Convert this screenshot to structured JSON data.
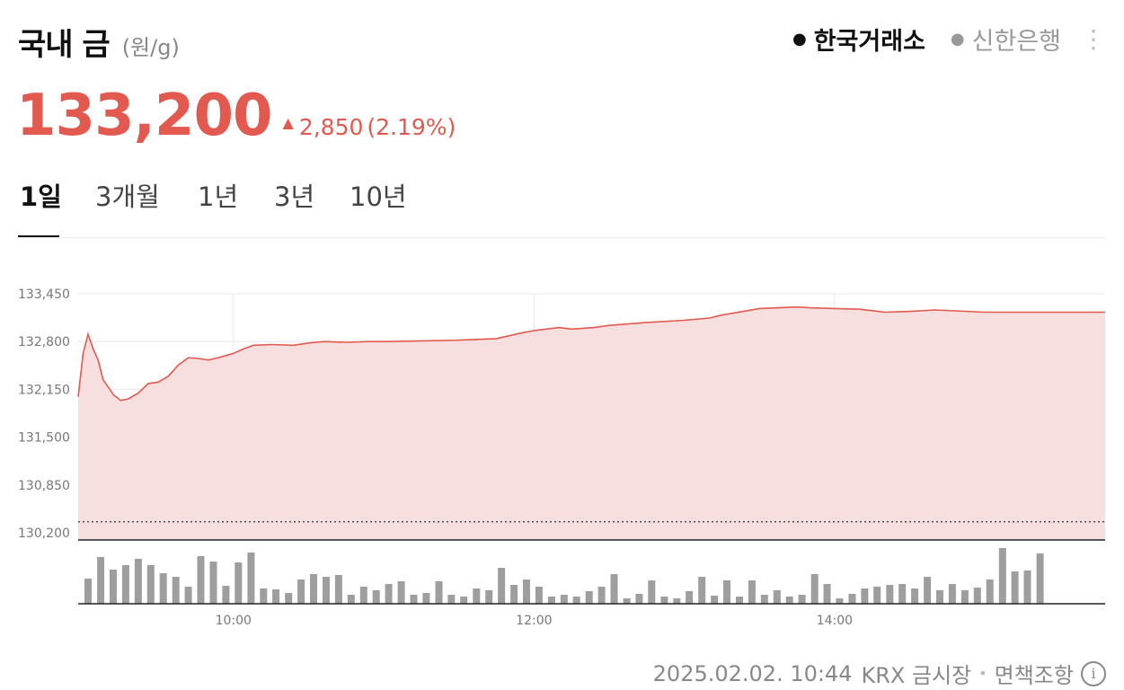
{
  "header": {
    "title": "국내 금",
    "unit": "(원/g)"
  },
  "sources": [
    {
      "label": "한국거래소",
      "active": true
    },
    {
      "label": "신한은행",
      "active": false
    }
  ],
  "more_icon": "more-vertical-icon",
  "price": {
    "value": "133,200",
    "arrow": "▲",
    "change": "2,850",
    "change_pct": "(2.19%)"
  },
  "tabs": [
    {
      "label": "1일",
      "active": true
    },
    {
      "label": "3개월",
      "active": false
    },
    {
      "label": "1년",
      "active": false
    },
    {
      "label": "3년",
      "active": false
    },
    {
      "label": "10년",
      "active": false
    }
  ],
  "colors": {
    "accent": "#e25a4f",
    "area_fill": "#f7dfdf",
    "volume": "#9e9e9e"
  },
  "chart_data": {
    "type": "area",
    "x_ticks": [
      "10:00",
      "12:00",
      "14:00"
    ],
    "y_ticks": [
      "133,450",
      "132,800",
      "132,150",
      "131,500",
      "130,850",
      "130,200"
    ],
    "ylim": [
      130200,
      133450
    ],
    "xlim": [
      8.967,
      15.8
    ],
    "reference_line": 130350,
    "grid": true,
    "x": [
      8.967,
      9.0,
      9.033,
      9.067,
      9.1,
      9.133,
      9.167,
      9.2,
      9.25,
      9.3,
      9.367,
      9.433,
      9.5,
      9.567,
      9.633,
      9.7,
      9.767,
      9.833,
      9.9,
      10.0,
      10.067,
      10.133,
      10.25,
      10.4,
      10.5,
      10.6,
      10.75,
      10.9,
      11.0,
      11.25,
      11.5,
      11.75,
      11.9,
      12.0,
      12.167,
      12.25,
      12.4,
      12.5,
      12.75,
      13.0,
      13.167,
      13.25,
      13.5,
      13.75,
      13.833,
      14.0,
      14.167,
      14.25,
      14.333,
      14.5,
      14.667,
      15.0,
      15.167,
      15.5,
      15.8
    ],
    "values": [
      132050,
      132640,
      132900,
      132700,
      132550,
      132280,
      132180,
      132080,
      132000,
      132020,
      132100,
      132230,
      132250,
      132330,
      132480,
      132580,
      132570,
      132550,
      132580,
      132640,
      132700,
      132750,
      132760,
      132750,
      132780,
      132800,
      132790,
      132800,
      132800,
      132810,
      132820,
      132840,
      132910,
      132950,
      132990,
      132970,
      132990,
      133020,
      133060,
      133090,
      133120,
      133160,
      133250,
      133270,
      133260,
      133250,
      133240,
      133220,
      133200,
      133210,
      133230,
      133200,
      133200,
      133200,
      133200
    ],
    "volume": {
      "x": [
        9.033,
        9.117,
        9.2,
        9.283,
        9.367,
        9.45,
        9.533,
        9.617,
        9.7,
        9.783,
        9.867,
        9.95,
        10.033,
        10.117,
        10.2,
        10.283,
        10.367,
        10.45,
        10.533,
        10.617,
        10.7,
        10.783,
        10.867,
        10.95,
        11.033,
        11.117,
        11.2,
        11.283,
        11.367,
        11.45,
        11.533,
        11.617,
        11.7,
        11.783,
        11.867,
        11.95,
        12.033,
        12.117,
        12.2,
        12.283,
        12.367,
        12.45,
        12.533,
        12.617,
        12.7,
        12.783,
        12.867,
        12.95,
        13.033,
        13.117,
        13.2,
        13.283,
        13.367,
        13.45,
        13.533,
        13.617,
        13.7,
        13.783,
        13.867,
        13.95,
        14.033,
        14.117,
        14.2,
        14.283,
        14.367,
        14.45,
        14.533,
        14.617,
        14.7,
        14.783,
        14.867,
        14.95,
        15.033,
        15.117,
        15.2,
        15.283,
        15.367
      ],
      "values": [
        28,
        52,
        38,
        43,
        50,
        43,
        34,
        30,
        19,
        53,
        47,
        20,
        46,
        57,
        17,
        16,
        12,
        27,
        33,
        30,
        32,
        10,
        19,
        15,
        22,
        25,
        10,
        12,
        25,
        10,
        8,
        17,
        15,
        40,
        21,
        27,
        19,
        8,
        10,
        8,
        14,
        19,
        33,
        6,
        11,
        26,
        8,
        6,
        14,
        30,
        9,
        26,
        8,
        26,
        10,
        15,
        8,
        10,
        33,
        22,
        6,
        11,
        17,
        19,
        21,
        22,
        17,
        30,
        15,
        22,
        15,
        18,
        27,
        62,
        36,
        37,
        56
      ]
    }
  },
  "footer": {
    "timestamp": "2025.02.02. 10:44",
    "market": "KRX 금시장",
    "separator": "•",
    "disclaimer": "면책조항",
    "info_icon_glyph": "i"
  }
}
